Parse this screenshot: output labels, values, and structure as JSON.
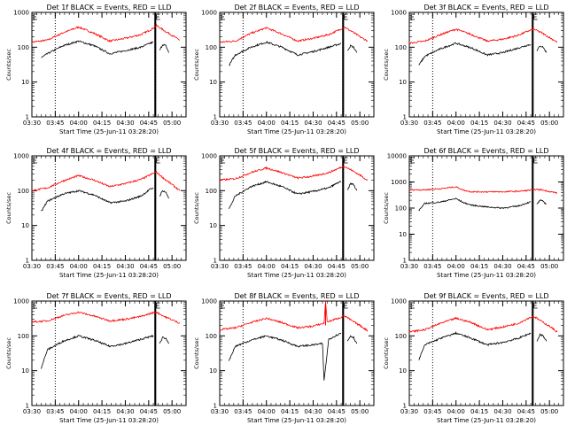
{
  "chart_data": [
    {
      "type": "line",
      "title": "Det 1f BLACK = Events, RED = LLD",
      "xlabel": "Start Time (25-Jun-11 03:28:20)",
      "ylabel": "Counts/sec",
      "x_ticks": [
        "03:30",
        "03:45",
        "04:00",
        "04:15",
        "04:30",
        "04:45",
        "05:00"
      ],
      "y_ticks": [
        "1",
        "10",
        "100",
        "1000"
      ],
      "yscale": "log",
      "ylim": [
        1,
        1000
      ],
      "xlim": [
        "03:30",
        "05:09"
      ],
      "dotted_lines": [
        "03:45",
        "04:49"
      ],
      "solid_lines": [
        "04:49",
        "04:49:30"
      ],
      "series": [
        {
          "color": "#ff0000",
          "x": [
            "03:30",
            "03:40",
            "03:50",
            "04:00",
            "04:10",
            "04:20",
            "04:30",
            "04:40",
            "04:47",
            "04:50",
            "04:55",
            "05:00",
            "05:05"
          ],
          "y": [
            140,
            160,
            260,
            380,
            250,
            150,
            180,
            230,
            330,
            420,
            300,
            220,
            160
          ]
        },
        {
          "color": "#000000",
          "x": [
            "03:36",
            "03:40",
            "03:50",
            "04:00",
            "04:10",
            "04:20",
            "04:30",
            "04:40",
            "04:46",
            "04:48"
          ],
          "y": [
            50,
            65,
            110,
            150,
            110,
            65,
            80,
            100,
            130,
            140
          ]
        },
        {
          "color": "#000000",
          "x": [
            "04:52",
            "04:54",
            "04:56",
            "04:58"
          ],
          "y": [
            80,
            120,
            110,
            70
          ]
        }
      ]
    },
    {
      "type": "line",
      "title": "Det 2f BLACK = Events, RED = LLD",
      "xlabel": "Start Time (25-Jun-11 03:28:20)",
      "ylabel": "Counts/sec",
      "x_ticks": [
        "03:30",
        "03:45",
        "04:00",
        "04:15",
        "04:30",
        "04:45",
        "05:00"
      ],
      "y_ticks": [
        "1",
        "10",
        "100",
        "1000"
      ],
      "yscale": "log",
      "ylim": [
        1,
        1000
      ],
      "xlim": [
        "03:30",
        "05:09"
      ],
      "dotted_lines": [
        "03:45",
        "04:49"
      ],
      "solid_lines": [
        "04:49",
        "04:49:30"
      ],
      "series": [
        {
          "color": "#ff0000",
          "x": [
            "03:30",
            "03:40",
            "03:50",
            "04:00",
            "04:10",
            "04:20",
            "04:30",
            "04:40",
            "04:47",
            "04:50",
            "04:55",
            "05:00",
            "05:05"
          ],
          "y": [
            140,
            150,
            250,
            360,
            240,
            150,
            180,
            230,
            320,
            380,
            280,
            200,
            150
          ]
        },
        {
          "color": "#000000",
          "x": [
            "03:36",
            "03:40",
            "03:50",
            "04:00",
            "04:10",
            "04:20",
            "04:30",
            "04:40",
            "04:46",
            "04:48"
          ],
          "y": [
            30,
            60,
            100,
            140,
            100,
            60,
            75,
            100,
            120,
            130
          ]
        },
        {
          "color": "#000000",
          "x": [
            "04:52",
            "04:54",
            "04:56",
            "04:58"
          ],
          "y": [
            80,
            110,
            100,
            70
          ]
        }
      ]
    },
    {
      "type": "line",
      "title": "Det 3f BLACK = Events, RED = LLD",
      "xlabel": "Start Time (25-Jun-11 03:28:20)",
      "ylabel": "Counts/sec",
      "x_ticks": [
        "03:30",
        "03:45",
        "04:00",
        "04:15",
        "04:30",
        "04:45",
        "05:00"
      ],
      "y_ticks": [
        "1",
        "10",
        "100",
        "1000"
      ],
      "yscale": "log",
      "ylim": [
        1,
        1000
      ],
      "xlim": [
        "03:30",
        "05:09"
      ],
      "dotted_lines": [
        "03:45",
        "04:49"
      ],
      "solid_lines": [
        "04:49",
        "04:49:30"
      ],
      "series": [
        {
          "color": "#ff0000",
          "x": [
            "03:30",
            "03:40",
            "03:50",
            "04:00",
            "04:10",
            "04:20",
            "04:30",
            "04:40",
            "04:47",
            "04:50",
            "04:55",
            "05:00",
            "05:05"
          ],
          "y": [
            130,
            150,
            230,
            330,
            230,
            150,
            170,
            220,
            300,
            330,
            260,
            190,
            140
          ]
        },
        {
          "color": "#000000",
          "x": [
            "03:36",
            "03:40",
            "03:50",
            "04:00",
            "04:10",
            "04:20",
            "04:30",
            "04:40",
            "04:46",
            "04:48"
          ],
          "y": [
            30,
            55,
            90,
            130,
            95,
            60,
            70,
            95,
            115,
            120
          ]
        },
        {
          "color": "#000000",
          "x": [
            "04:52",
            "04:54",
            "04:56",
            "04:58"
          ],
          "y": [
            80,
            110,
            100,
            70
          ]
        }
      ]
    },
    {
      "type": "line",
      "title": "Det 4f BLACK = Events, RED = LLD",
      "xlabel": "Start Time (25-Jun-11 03:28:20)",
      "ylabel": "Counts/sec",
      "x_ticks": [
        "03:30",
        "03:45",
        "04:00",
        "04:15",
        "04:30",
        "04:45",
        "05:00"
      ],
      "y_ticks": [
        "1",
        "10",
        "100",
        "1000"
      ],
      "yscale": "log",
      "ylim": [
        1,
        1000
      ],
      "xlim": [
        "03:30",
        "05:09"
      ],
      "dotted_lines": [
        "03:45",
        "04:49"
      ],
      "solid_lines": [
        "04:49",
        "04:49:30"
      ],
      "series": [
        {
          "color": "#ff0000",
          "x": [
            "03:30",
            "03:40",
            "03:50",
            "04:00",
            "04:10",
            "04:20",
            "04:30",
            "04:40",
            "04:47",
            "04:50",
            "04:55",
            "05:00",
            "05:05"
          ],
          "y": [
            100,
            120,
            190,
            270,
            200,
            130,
            160,
            210,
            300,
            340,
            220,
            150,
            100
          ]
        },
        {
          "color": "#000000",
          "x": [
            "03:36",
            "03:40",
            "03:50",
            "04:00",
            "04:10",
            "04:20",
            "04:30",
            "04:40",
            "04:46",
            "04:48"
          ],
          "y": [
            25,
            50,
            80,
            100,
            75,
            45,
            50,
            70,
            110,
            120
          ]
        },
        {
          "color": "#000000",
          "x": [
            "04:52",
            "04:54",
            "04:56",
            "04:58"
          ],
          "y": [
            70,
            100,
            90,
            60
          ]
        }
      ]
    },
    {
      "type": "line",
      "title": "Det 5f BLACK = Events, RED = LLD",
      "xlabel": "Start Time (25-Jun-11 03:28:20)",
      "ylabel": "Counts/sec",
      "x_ticks": [
        "03:30",
        "03:45",
        "04:00",
        "04:15",
        "04:30",
        "04:45",
        "05:00"
      ],
      "y_ticks": [
        "1",
        "10",
        "100",
        "1000"
      ],
      "yscale": "log",
      "ylim": [
        1,
        1000
      ],
      "xlim": [
        "03:30",
        "05:09"
      ],
      "dotted_lines": [
        "03:45",
        "04:49"
      ],
      "solid_lines": [
        "04:49",
        "04:49:30"
      ],
      "series": [
        {
          "color": "#ff0000",
          "x": [
            "03:30",
            "03:40",
            "03:50",
            "04:00",
            "04:10",
            "04:20",
            "04:30",
            "04:40",
            "04:47",
            "04:50",
            "04:55",
            "05:00",
            "05:05"
          ],
          "y": [
            200,
            220,
            330,
            450,
            330,
            230,
            260,
            330,
            450,
            500,
            380,
            280,
            200
          ]
        },
        {
          "color": "#000000",
          "x": [
            "03:36",
            "03:40",
            "03:50",
            "04:00",
            "04:10",
            "04:20",
            "04:30",
            "04:40",
            "04:46",
            "04:48"
          ],
          "y": [
            30,
            70,
            130,
            180,
            130,
            80,
            95,
            120,
            170,
            180
          ]
        },
        {
          "color": "#000000",
          "x": [
            "04:52",
            "04:54",
            "04:56",
            "04:58"
          ],
          "y": [
            100,
            160,
            150,
            100
          ]
        }
      ]
    },
    {
      "type": "line",
      "title": "Det 6f BLACK = Events, RED = LLD",
      "xlabel": "Start Time (25-Jun-11 03:28:20)",
      "ylabel": "Counts/sec",
      "x_ticks": [
        "03:30",
        "03:45",
        "04:00",
        "04:15",
        "04:30",
        "04:45",
        "05:00"
      ],
      "y_ticks": [
        "1",
        "10",
        "100",
        "1000",
        "10000"
      ],
      "yscale": "log",
      "ylim": [
        1,
        10000
      ],
      "xlim": [
        "03:30",
        "05:09"
      ],
      "dotted_lines": [
        "03:45",
        "04:49"
      ],
      "solid_lines": [
        "04:49",
        "04:49:30"
      ],
      "series": [
        {
          "color": "#ff0000",
          "x": [
            "03:30",
            "03:40",
            "03:50",
            "03:55",
            "04:00",
            "04:05",
            "04:10",
            "04:20",
            "04:30",
            "04:40",
            "04:47",
            "04:50",
            "04:55",
            "05:00",
            "05:05"
          ],
          "y": [
            500,
            500,
            550,
            600,
            650,
            480,
            420,
            420,
            420,
            440,
            480,
            520,
            500,
            430,
            380
          ]
        },
        {
          "color": "#000000",
          "x": [
            "03:36",
            "03:40",
            "03:50",
            "03:55",
            "04:00",
            "04:05",
            "04:10",
            "04:20",
            "04:30",
            "04:40",
            "04:46",
            "04:48"
          ],
          "y": [
            80,
            150,
            170,
            200,
            230,
            160,
            130,
            110,
            100,
            120,
            160,
            170
          ]
        },
        {
          "color": "#000000",
          "x": [
            "04:52",
            "04:54",
            "04:56",
            "04:58"
          ],
          "y": [
            140,
            200,
            180,
            140
          ]
        }
      ]
    },
    {
      "type": "line",
      "title": "Det 7f BLACK = Events, RED = LLD",
      "xlabel": "Start Time (25-Jun-11 03:28:20)",
      "ylabel": "Counts/sec",
      "x_ticks": [
        "03:30",
        "03:45",
        "04:00",
        "04:15",
        "04:30",
        "04:45",
        "05:00"
      ],
      "y_ticks": [
        "1",
        "10",
        "100",
        "1000"
      ],
      "yscale": "log",
      "ylim": [
        1,
        1000
      ],
      "xlim": [
        "03:30",
        "05:09"
      ],
      "dotted_lines": [
        "03:45",
        "04:49"
      ],
      "solid_lines": [
        "04:49",
        "04:49:30"
      ],
      "series": [
        {
          "color": "#ff0000",
          "x": [
            "03:30",
            "03:40",
            "03:50",
            "04:00",
            "04:10",
            "04:20",
            "04:30",
            "04:40",
            "04:47",
            "04:50",
            "04:55",
            "05:00",
            "05:05"
          ],
          "y": [
            250,
            270,
            380,
            480,
            370,
            270,
            300,
            360,
            450,
            480,
            360,
            290,
            230
          ]
        },
        {
          "color": "#000000",
          "x": [
            "03:36",
            "03:40",
            "03:50",
            "04:00",
            "04:10",
            "04:20",
            "04:30",
            "04:40",
            "04:46",
            "04:48"
          ],
          "y": [
            12,
            40,
            70,
            100,
            75,
            50,
            60,
            80,
            95,
            100
          ]
        },
        {
          "color": "#000000",
          "x": [
            "04:52",
            "04:54",
            "04:56",
            "04:58"
          ],
          "y": [
            60,
            90,
            85,
            60
          ]
        }
      ]
    },
    {
      "type": "line",
      "title": "Det 8f BLACK = Events, RED = LLD",
      "xlabel": "Start Time (25-Jun-11 03:28:20)",
      "ylabel": "Counts/sec",
      "x_ticks": [
        "03:30",
        "03:45",
        "04:00",
        "04:15",
        "04:30",
        "04:45",
        "05:00"
      ],
      "y_ticks": [
        "1",
        "10",
        "100",
        "1000"
      ],
      "yscale": "log",
      "ylim": [
        1,
        1000
      ],
      "xlim": [
        "03:30",
        "05:09"
      ],
      "dotted_lines": [
        "03:45",
        "04:49"
      ],
      "solid_lines": [
        "04:49",
        "04:49:30"
      ],
      "spike": {
        "x": "04:38",
        "y": 1000
      },
      "series": [
        {
          "color": "#ff0000",
          "x": [
            "03:30",
            "03:40",
            "03:50",
            "04:00",
            "04:10",
            "04:20",
            "04:30",
            "04:37",
            "04:38",
            "04:39",
            "04:40",
            "04:47",
            "04:50",
            "04:55",
            "05:00",
            "05:05"
          ],
          "y": [
            150,
            170,
            240,
            320,
            240,
            170,
            190,
            230,
            1000,
            260,
            260,
            330,
            380,
            270,
            200,
            140
          ]
        },
        {
          "color": "#000000",
          "x": [
            "03:36",
            "03:40",
            "03:50",
            "04:00",
            "04:10",
            "04:20",
            "04:30",
            "04:36",
            "04:37",
            "04:40",
            "04:46",
            "04:48"
          ],
          "y": [
            20,
            50,
            75,
            100,
            75,
            50,
            55,
            60,
            5,
            80,
            110,
            120
          ]
        },
        {
          "color": "#000000",
          "x": [
            "04:52",
            "04:54",
            "04:56",
            "04:58"
          ],
          "y": [
            70,
            100,
            90,
            60
          ]
        }
      ]
    },
    {
      "type": "line",
      "title": "Det 9f BLACK = Events, RED = LLD",
      "xlabel": "Start Time (25-Jun-11 03:28:20)",
      "ylabel": "Counts/sec",
      "x_ticks": [
        "03:30",
        "03:45",
        "04:00",
        "04:15",
        "04:30",
        "04:45",
        "05:00"
      ],
      "y_ticks": [
        "1",
        "10",
        "100",
        "1000"
      ],
      "yscale": "log",
      "ylim": [
        1,
        1000
      ],
      "xlim": [
        "03:30",
        "05:09"
      ],
      "dotted_lines": [
        "03:45",
        "04:49"
      ],
      "solid_lines": [
        "04:49",
        "04:49:30"
      ],
      "series": [
        {
          "color": "#ff0000",
          "x": [
            "03:30",
            "03:40",
            "03:50",
            "04:00",
            "04:10",
            "04:20",
            "04:30",
            "04:40",
            "04:47",
            "04:50",
            "04:55",
            "05:00",
            "05:05"
          ],
          "y": [
            130,
            150,
            230,
            320,
            240,
            150,
            180,
            230,
            330,
            360,
            260,
            190,
            130
          ]
        },
        {
          "color": "#000000",
          "x": [
            "03:36",
            "03:40",
            "03:50",
            "04:00",
            "04:10",
            "04:20",
            "04:30",
            "04:40",
            "04:46",
            "04:48"
          ],
          "y": [
            20,
            55,
            85,
            120,
            85,
            55,
            65,
            85,
            110,
            120
          ]
        },
        {
          "color": "#000000",
          "x": [
            "04:52",
            "04:54",
            "04:56",
            "04:58"
          ],
          "y": [
            70,
            110,
            100,
            70
          ]
        }
      ]
    }
  ]
}
